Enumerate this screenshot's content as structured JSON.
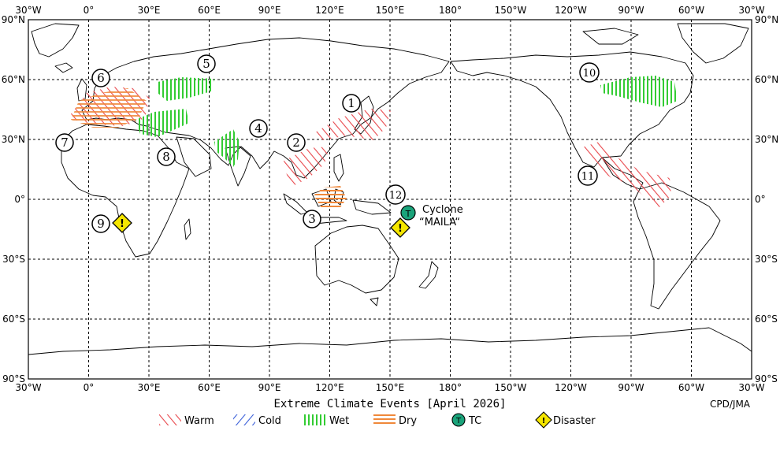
{
  "map": {
    "lon_ticks_top": [
      "30°W",
      "0°",
      "30°E",
      "60°E",
      "90°E",
      "120°E",
      "150°E",
      "180°",
      "150°W",
      "120°W",
      "90°W",
      "60°W",
      "30°W"
    ],
    "lon_ticks_bottom": [
      "30°W",
      "0°",
      "30°E",
      "60°E",
      "90°E",
      "120°E",
      "150°E",
      "180°",
      "150°W",
      "120°W",
      "90°W",
      "60°W",
      "30°W"
    ],
    "lat_ticks": [
      "90°N",
      "60°N",
      "30°N",
      "0°",
      "30°S",
      "60°S",
      "90°S"
    ],
    "grid": "on",
    "title": "Extreme Climate Events [April 2026]",
    "credit": "CPD/JMA",
    "cyclone_label_line1": "Cyclone",
    "cyclone_label_line2": "“MAILA“",
    "colors": {
      "warm": "#e8474c",
      "cold": "#3a5fd9",
      "wet": "#33cc33",
      "dry": "#f0883a",
      "tc": "#1aa37a",
      "disaster": "#f5e600"
    },
    "events": [
      {
        "id": "1",
        "label": "1"
      },
      {
        "id": "2",
        "label": "2"
      },
      {
        "id": "3",
        "label": "3"
      },
      {
        "id": "4",
        "label": "4"
      },
      {
        "id": "5",
        "label": "5"
      },
      {
        "id": "6",
        "label": "6"
      },
      {
        "id": "7",
        "label": "7"
      },
      {
        "id": "8",
        "label": "8"
      },
      {
        "id": "9",
        "label": "9"
      },
      {
        "id": "10",
        "label": "10"
      },
      {
        "id": "11",
        "label": "11"
      },
      {
        "id": "12",
        "label": "12"
      }
    ],
    "tc_symbol": "T",
    "disaster_symbol": "!"
  },
  "legend": {
    "items": [
      {
        "key": "warm",
        "label": "Warm"
      },
      {
        "key": "cold",
        "label": "Cold"
      },
      {
        "key": "wet",
        "label": "Wet"
      },
      {
        "key": "dry",
        "label": "Dry"
      },
      {
        "key": "tc",
        "label": "TC"
      },
      {
        "key": "disaster",
        "label": "Disaster"
      }
    ]
  }
}
